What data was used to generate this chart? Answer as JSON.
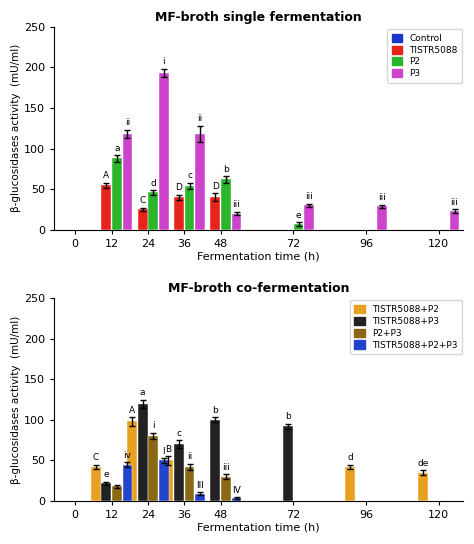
{
  "top_title": "MF-broth single fermentation",
  "bottom_title": "MF-broth co-fermentation",
  "xlabel": "Fermentation time (h)",
  "ylabel": "β-glucosidases activity  (mU/ml)",
  "xticks": [
    0,
    12,
    24,
    36,
    48,
    72,
    96,
    120
  ],
  "ylim": [
    0,
    250
  ],
  "yticks": [
    0,
    50,
    100,
    150,
    200,
    250
  ],
  "top_series": {
    "Control": [
      0,
      0,
      0,
      0,
      0,
      0,
      0,
      0
    ],
    "TISTR5088": [
      0,
      55,
      25,
      40,
      40,
      0,
      0,
      0
    ],
    "P2": [
      0,
      88,
      46,
      54,
      62,
      7,
      0,
      0
    ],
    "P3": [
      0,
      118,
      193,
      118,
      20,
      30,
      29,
      23
    ]
  },
  "top_errors": {
    "Control": [
      0,
      0,
      0,
      0,
      0,
      0,
      0,
      0
    ],
    "TISTR5088": [
      0,
      3,
      2,
      3,
      5,
      0,
      0,
      0
    ],
    "P2": [
      0,
      4,
      3,
      4,
      4,
      2,
      0,
      0
    ],
    "P3": [
      0,
      5,
      5,
      10,
      2,
      2,
      2,
      2
    ]
  },
  "top_labels": {
    "Control": [
      "",
      "",
      "",
      "",
      "",
      "",
      "",
      ""
    ],
    "TISTR5088": [
      "",
      "A",
      "C",
      "D",
      "D",
      "",
      "",
      ""
    ],
    "P2": [
      "",
      "a",
      "d",
      "c",
      "b",
      "e",
      "",
      ""
    ],
    "P3": [
      "",
      "ii",
      "i",
      "ii",
      "iii",
      "iii",
      "iii",
      "iii"
    ]
  },
  "top_colors": {
    "Control": "#1a35cc",
    "TISTR5088": "#e8231c",
    "P2": "#2ab52a",
    "P3": "#cc44cc"
  },
  "top_legend_order": [
    "Control",
    "TISTR5088",
    "P2",
    "P3"
  ],
  "bottom_series": {
    "TISTR5088+P2": [
      0,
      42,
      98,
      50,
      0,
      0,
      42,
      35
    ],
    "TISTR5088+P3": [
      0,
      22,
      120,
      70,
      100,
      92,
      0,
      0
    ],
    "P2+P3": [
      0,
      18,
      80,
      42,
      30,
      0,
      0,
      0
    ],
    "TISTR5088+P2+P3": [
      0,
      45,
      50,
      9,
      4,
      0,
      0,
      0
    ]
  },
  "bottom_errors": {
    "TISTR5088+P2": [
      0,
      3,
      5,
      5,
      0,
      0,
      3,
      3
    ],
    "TISTR5088+P3": [
      0,
      2,
      5,
      5,
      3,
      3,
      0,
      0
    ],
    "P2+P3": [
      0,
      2,
      4,
      4,
      3,
      0,
      0,
      0
    ],
    "TISTR5088+P2+P3": [
      0,
      3,
      3,
      2,
      1,
      0,
      0,
      0
    ]
  },
  "bottom_labels": {
    "TISTR5088+P2": [
      "",
      "C",
      "A",
      "B",
      "",
      "",
      "d",
      "de"
    ],
    "TISTR5088+P3": [
      "",
      "e",
      "a",
      "c",
      "b",
      "b",
      "",
      ""
    ],
    "P2+P3": [
      "",
      "",
      "i",
      "ii",
      "iii",
      "",
      "",
      ""
    ],
    "TISTR5088+P2+P3": [
      "",
      "iv",
      "I",
      "III",
      "IV",
      "",
      "",
      ""
    ]
  },
  "bottom_colors": {
    "TISTR5088+P2": "#e8a020",
    "TISTR5088+P3": "#222222",
    "P2+P3": "#8B6914",
    "TISTR5088+P2+P3": "#2244cc"
  },
  "bottom_legend_order": [
    "TISTR5088+P2",
    "TISTR5088+P3",
    "P2+P3",
    "TISTR5088+P2+P3"
  ]
}
